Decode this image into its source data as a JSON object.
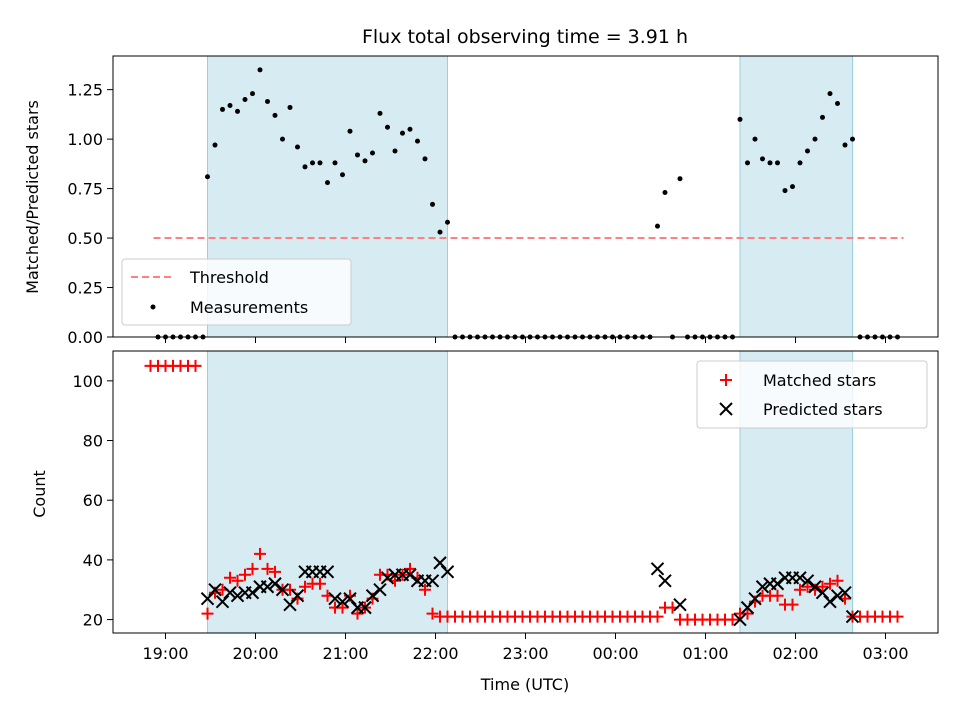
{
  "chart_data": [
    {
      "type": "scatter",
      "title": "Flux total observing time = 3.91 h",
      "xlabel": "",
      "ylabel": "Matched/Predicted stars",
      "ylim": [
        0,
        1.42
      ],
      "yticks": [
        "0.00",
        "0.25",
        "0.50",
        "0.75",
        "1.00",
        "1.25"
      ],
      "legend_position": "lower-left",
      "threshold": {
        "name": "Threshold",
        "value": 0.5,
        "x_range": [
          "18:52",
          "03:12"
        ],
        "color": "#ff8080",
        "style": "dashed"
      },
      "highlight_intervals": [
        [
          "19:28",
          "22:08"
        ],
        [
          "01:23",
          "02:38"
        ]
      ],
      "series": [
        {
          "name": "Measurements",
          "color": "#000000",
          "points": [
            [
              "18:55",
              0
            ],
            [
              "19:00",
              0
            ],
            [
              "19:05",
              0
            ],
            [
              "19:10",
              0
            ],
            [
              "19:15",
              0
            ],
            [
              "19:20",
              0
            ],
            [
              "19:25",
              0
            ],
            [
              "19:28",
              0.81
            ],
            [
              "19:33",
              0.97
            ],
            [
              "19:38",
              1.15
            ],
            [
              "19:43",
              1.17
            ],
            [
              "19:48",
              1.14
            ],
            [
              "19:53",
              1.2
            ],
            [
              "19:58",
              1.23
            ],
            [
              "20:03",
              1.35
            ],
            [
              "20:08",
              1.19
            ],
            [
              "20:13",
              1.12
            ],
            [
              "20:18",
              1.0
            ],
            [
              "20:23",
              1.16
            ],
            [
              "20:28",
              0.96
            ],
            [
              "20:33",
              0.86
            ],
            [
              "20:38",
              0.88
            ],
            [
              "20:43",
              0.88
            ],
            [
              "20:48",
              0.78
            ],
            [
              "20:53",
              0.88
            ],
            [
              "20:58",
              0.82
            ],
            [
              "21:03",
              1.04
            ],
            [
              "21:08",
              0.92
            ],
            [
              "21:13",
              0.89
            ],
            [
              "21:18",
              0.93
            ],
            [
              "21:23",
              1.13
            ],
            [
              "21:28",
              1.06
            ],
            [
              "21:33",
              0.94
            ],
            [
              "21:38",
              1.03
            ],
            [
              "21:43",
              1.05
            ],
            [
              "21:48",
              0.99
            ],
            [
              "21:53",
              0.9
            ],
            [
              "21:58",
              0.67
            ],
            [
              "22:03",
              0.53
            ],
            [
              "22:08",
              0.58
            ],
            [
              "22:13",
              0
            ],
            [
              "22:18",
              0
            ],
            [
              "22:23",
              0
            ],
            [
              "22:28",
              0
            ],
            [
              "22:33",
              0
            ],
            [
              "22:38",
              0
            ],
            [
              "22:43",
              0
            ],
            [
              "22:48",
              0
            ],
            [
              "22:53",
              0
            ],
            [
              "22:58",
              0
            ],
            [
              "23:03",
              0
            ],
            [
              "23:08",
              0
            ],
            [
              "23:13",
              0
            ],
            [
              "23:18",
              0
            ],
            [
              "23:23",
              0
            ],
            [
              "23:28",
              0
            ],
            [
              "23:33",
              0
            ],
            [
              "23:38",
              0
            ],
            [
              "23:43",
              0
            ],
            [
              "23:48",
              0
            ],
            [
              "23:53",
              0
            ],
            [
              "23:58",
              0
            ],
            [
              "00:03",
              0
            ],
            [
              "00:08",
              0
            ],
            [
              "00:13",
              0
            ],
            [
              "00:18",
              0
            ],
            [
              "00:23",
              0
            ],
            [
              "00:28",
              0.56
            ],
            [
              "00:33",
              0.73
            ],
            [
              "00:38",
              0
            ],
            [
              "00:43",
              0.8
            ],
            [
              "00:48",
              0
            ],
            [
              "00:53",
              0
            ],
            [
              "00:58",
              0
            ],
            [
              "01:03",
              0
            ],
            [
              "01:08",
              0
            ],
            [
              "01:13",
              0
            ],
            [
              "01:18",
              0
            ],
            [
              "01:23",
              1.1
            ],
            [
              "01:28",
              0.88
            ],
            [
              "01:33",
              1.0
            ],
            [
              "01:38",
              0.9
            ],
            [
              "01:43",
              0.88
            ],
            [
              "01:48",
              0.88
            ],
            [
              "01:53",
              0.74
            ],
            [
              "01:58",
              0.76
            ],
            [
              "02:03",
              0.88
            ],
            [
              "02:08",
              0.94
            ],
            [
              "02:13",
              1.0
            ],
            [
              "02:18",
              1.11
            ],
            [
              "02:23",
              1.23
            ],
            [
              "02:28",
              1.18
            ],
            [
              "02:33",
              0.97
            ],
            [
              "02:38",
              1.0
            ],
            [
              "02:43",
              0
            ],
            [
              "02:48",
              0
            ],
            [
              "02:53",
              0
            ],
            [
              "02:58",
              0
            ],
            [
              "03:03",
              0
            ],
            [
              "03:08",
              0
            ]
          ]
        }
      ]
    },
    {
      "type": "scatter",
      "title": "",
      "xlabel": "Time (UTC)",
      "ylabel": "Count",
      "ylim": [
        15.5,
        110
      ],
      "yticks": [
        "20",
        "40",
        "60",
        "80",
        "100"
      ],
      "xticks": [
        "19:00",
        "20:00",
        "21:00",
        "22:00",
        "23:00",
        "00:00",
        "01:00",
        "02:00",
        "03:00"
      ],
      "legend_position": "upper-right",
      "highlight_intervals": [
        [
          "19:28",
          "22:08"
        ],
        [
          "01:23",
          "02:38"
        ]
      ],
      "series": [
        {
          "name": "Matched stars",
          "marker": "plus",
          "color": "#ff0000",
          "points": [
            [
              "18:50",
              105
            ],
            [
              "18:55",
              105
            ],
            [
              "19:00",
              105
            ],
            [
              "19:05",
              105
            ],
            [
              "19:10",
              105
            ],
            [
              "19:15",
              105
            ],
            [
              "19:20",
              105
            ],
            [
              "19:28",
              22
            ],
            [
              "19:33",
              29
            ],
            [
              "19:38",
              30
            ],
            [
              "19:43",
              34
            ],
            [
              "19:48",
              33
            ],
            [
              "19:53",
              35
            ],
            [
              "19:58",
              37
            ],
            [
              "20:03",
              42
            ],
            [
              "20:08",
              37
            ],
            [
              "20:13",
              36
            ],
            [
              "20:18",
              30
            ],
            [
              "20:23",
              30
            ],
            [
              "20:28",
              27
            ],
            [
              "20:33",
              31
            ],
            [
              "20:38",
              32
            ],
            [
              "20:43",
              32
            ],
            [
              "20:48",
              28
            ],
            [
              "20:53",
              24
            ],
            [
              "20:58",
              24
            ],
            [
              "21:03",
              28
            ],
            [
              "21:08",
              22
            ],
            [
              "21:13",
              24
            ],
            [
              "21:18",
              27
            ],
            [
              "21:23",
              35
            ],
            [
              "21:28",
              35
            ],
            [
              "21:33",
              33
            ],
            [
              "21:38",
              35
            ],
            [
              "21:43",
              37
            ],
            [
              "21:48",
              34
            ],
            [
              "21:53",
              30
            ],
            [
              "21:58",
              22
            ],
            [
              "22:03",
              21
            ],
            [
              "22:08",
              21
            ],
            [
              "22:13",
              21
            ],
            [
              "22:18",
              21
            ],
            [
              "22:23",
              21
            ],
            [
              "22:28",
              21
            ],
            [
              "22:33",
              21
            ],
            [
              "22:38",
              21
            ],
            [
              "22:43",
              21
            ],
            [
              "22:48",
              21
            ],
            [
              "22:53",
              21
            ],
            [
              "22:58",
              21
            ],
            [
              "23:03",
              21
            ],
            [
              "23:08",
              21
            ],
            [
              "23:13",
              21
            ],
            [
              "23:18",
              21
            ],
            [
              "23:23",
              21
            ],
            [
              "23:28",
              21
            ],
            [
              "23:33",
              21
            ],
            [
              "23:38",
              21
            ],
            [
              "23:43",
              21
            ],
            [
              "23:48",
              21
            ],
            [
              "23:53",
              21
            ],
            [
              "23:58",
              21
            ],
            [
              "00:03",
              21
            ],
            [
              "00:08",
              21
            ],
            [
              "00:13",
              21
            ],
            [
              "00:18",
              21
            ],
            [
              "00:23",
              21
            ],
            [
              "00:28",
              21
            ],
            [
              "00:33",
              24
            ],
            [
              "00:38",
              24
            ],
            [
              "00:43",
              20
            ],
            [
              "00:48",
              20
            ],
            [
              "00:53",
              20
            ],
            [
              "00:58",
              20
            ],
            [
              "01:03",
              20
            ],
            [
              "01:08",
              20
            ],
            [
              "01:13",
              20
            ],
            [
              "01:18",
              20
            ],
            [
              "01:23",
              22
            ],
            [
              "01:28",
              22
            ],
            [
              "01:33",
              26
            ],
            [
              "01:38",
              28
            ],
            [
              "01:43",
              28
            ],
            [
              "01:48",
              28
            ],
            [
              "01:53",
              25
            ],
            [
              "01:58",
              25
            ],
            [
              "02:03",
              30
            ],
            [
              "02:08",
              31
            ],
            [
              "02:13",
              30
            ],
            [
              "02:18",
              31
            ],
            [
              "02:23",
              32
            ],
            [
              "02:28",
              33
            ],
            [
              "02:33",
              27
            ],
            [
              "02:38",
              21
            ],
            [
              "02:43",
              21
            ],
            [
              "02:48",
              21
            ],
            [
              "02:53",
              21
            ],
            [
              "02:58",
              21
            ],
            [
              "03:03",
              21
            ],
            [
              "03:08",
              21
            ]
          ]
        },
        {
          "name": "Predicted stars",
          "marker": "x",
          "color": "#000000",
          "points": [
            [
              "19:28",
              27
            ],
            [
              "19:33",
              30
            ],
            [
              "19:38",
              26
            ],
            [
              "19:43",
              29
            ],
            [
              "19:48",
              28
            ],
            [
              "19:53",
              29
            ],
            [
              "19:58",
              29
            ],
            [
              "20:03",
              31
            ],
            [
              "20:08",
              31
            ],
            [
              "20:13",
              32
            ],
            [
              "20:18",
              30
            ],
            [
              "20:23",
              25
            ],
            [
              "20:28",
              28
            ],
            [
              "20:33",
              36
            ],
            [
              "20:38",
              36
            ],
            [
              "20:43",
              36
            ],
            [
              "20:48",
              36
            ],
            [
              "20:53",
              27
            ],
            [
              "20:58",
              26
            ],
            [
              "21:03",
              27
            ],
            [
              "21:08",
              24
            ],
            [
              "21:13",
              24
            ],
            [
              "21:18",
              28
            ],
            [
              "21:23",
              30
            ],
            [
              "21:28",
              34
            ],
            [
              "21:33",
              35
            ],
            [
              "21:38",
              35
            ],
            [
              "21:43",
              35
            ],
            [
              "21:48",
              33
            ],
            [
              "21:53",
              33
            ],
            [
              "21:58",
              33
            ],
            [
              "22:03",
              39
            ],
            [
              "22:08",
              36
            ],
            [
              "00:28",
              37
            ],
            [
              "00:33",
              33
            ],
            [
              "00:43",
              25
            ],
            [
              "01:23",
              20
            ],
            [
              "01:28",
              24
            ],
            [
              "01:33",
              27
            ],
            [
              "01:38",
              31
            ],
            [
              "01:43",
              32
            ],
            [
              "01:48",
              32
            ],
            [
              "01:53",
              34
            ],
            [
              "01:58",
              34
            ],
            [
              "02:03",
              34
            ],
            [
              "02:08",
              33
            ],
            [
              "02:13",
              31
            ],
            [
              "02:18",
              29
            ],
            [
              "02:23",
              26
            ],
            [
              "02:28",
              28
            ],
            [
              "02:33",
              29
            ],
            [
              "02:38",
              21
            ]
          ]
        }
      ]
    }
  ]
}
